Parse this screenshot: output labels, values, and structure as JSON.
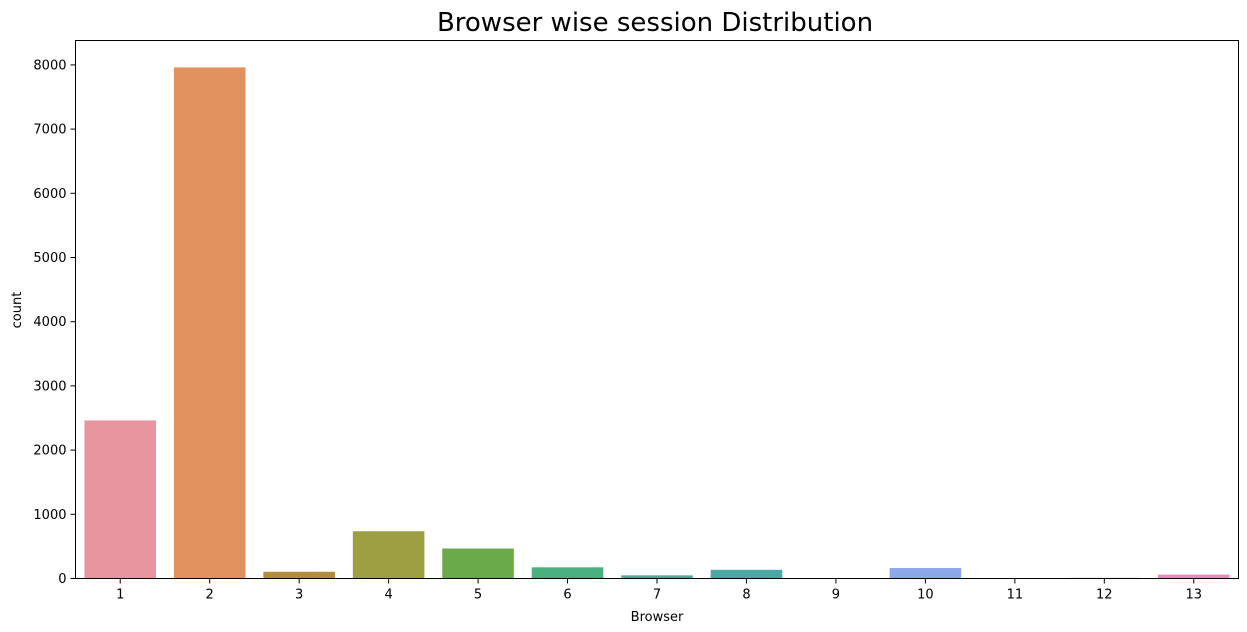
{
  "chart_data": {
    "type": "bar",
    "title": "Browser wise session Distribution",
    "xlabel": "Browser",
    "ylabel": "count",
    "categories": [
      "1",
      "2",
      "3",
      "4",
      "5",
      "6",
      "7",
      "8",
      "9",
      "10",
      "11",
      "12",
      "13"
    ],
    "values": [
      2462,
      7961,
      105,
      736,
      467,
      174,
      49,
      135,
      1,
      163,
      6,
      10,
      61
    ],
    "colors": [
      "#e9959f",
      "#e2925f",
      "#b08d3f",
      "#9e9f43",
      "#6aaa4b",
      "#4bb080",
      "#4cab98",
      "#4aa8a7",
      "#58a6c8",
      "#8ba8e8",
      "#b897e4",
      "#da87d8",
      "#ea8bbf"
    ],
    "ylim": [
      0,
      8380
    ],
    "yticks": [
      0,
      1000,
      2000,
      3000,
      4000,
      5000,
      6000,
      7000,
      8000
    ],
    "grid": false,
    "legend": "none"
  }
}
